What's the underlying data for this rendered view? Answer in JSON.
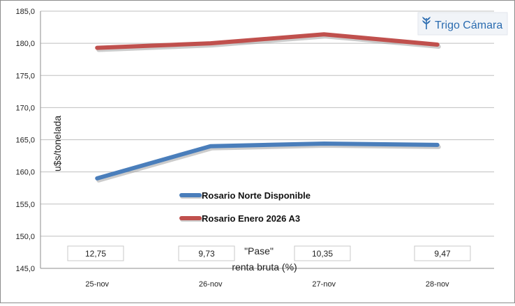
{
  "chart_data": {
    "type": "line",
    "categories": [
      "25-nov",
      "26-nov",
      "27-nov",
      "28-nov"
    ],
    "series": [
      {
        "name": "Rosario Norte Disponible",
        "values": [
          159.0,
          164.0,
          164.4,
          164.2
        ],
        "color": "#4a7ebb"
      },
      {
        "name": "Rosario Enero 2026 A3",
        "values": [
          179.3,
          180.0,
          181.4,
          179.8
        ],
        "color": "#c0504d"
      }
    ],
    "ylabel": "u$s/tonelada",
    "ylim": [
      145,
      185
    ],
    "yticks": [
      "145,0",
      "150,0",
      "155,0",
      "160,0",
      "165,0",
      "170,0",
      "175,0",
      "180,0",
      "185,0"
    ],
    "grid": true,
    "legend_position": "center",
    "pase": {
      "label": "\"Pase\"",
      "sublabel": "renta bruta (%)",
      "values": [
        "12,75",
        "9,73",
        "10,35",
        "9,47"
      ]
    }
  },
  "logo": {
    "text": "Trigo Cámara",
    "icon": "wheat-icon",
    "color": "#2b6cb0"
  }
}
